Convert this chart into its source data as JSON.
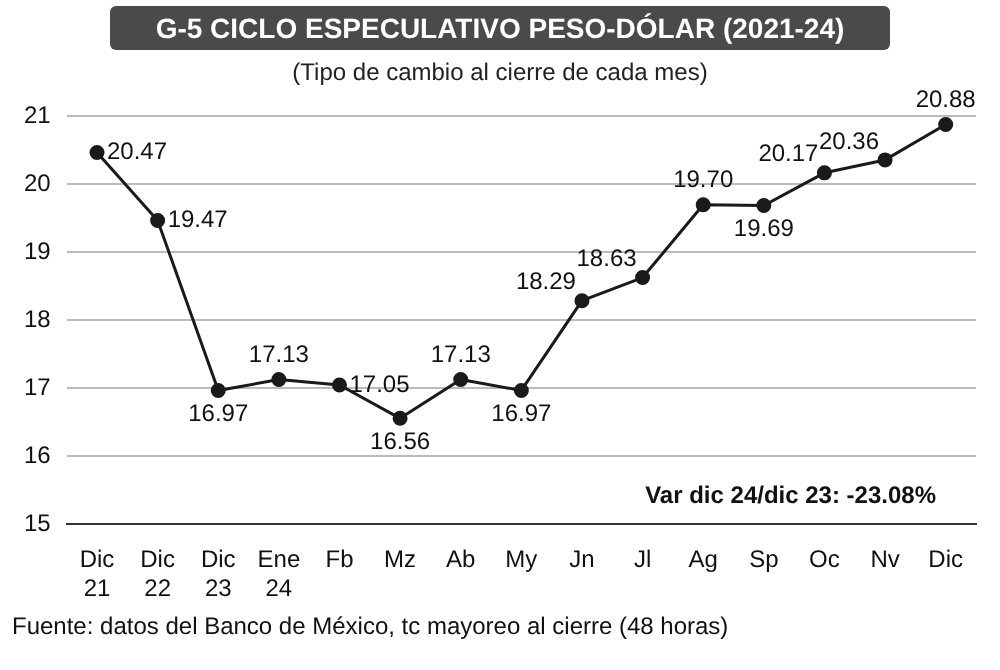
{
  "chart_data": {
    "type": "line",
    "title": "G-5 CICLO ESPECULATIVO PESO-DÓLAR (2021-24)",
    "subtitle": "(Tipo de cambio al cierre de cada mes)",
    "categories": [
      "Dic\n21",
      "Dic\n22",
      "Dic\n23",
      "Ene\n24",
      "Fb",
      "Mz",
      "Ab",
      "My",
      "Jn",
      "Jl",
      "Ag",
      "Sp",
      "Oc",
      "Nv",
      "Dic"
    ],
    "series": [
      {
        "color": "#1a1a1a",
        "values": [
          20.47,
          19.47,
          16.97,
          17.13,
          17.05,
          16.56,
          17.13,
          16.97,
          18.29,
          18.63,
          19.7,
          19.69,
          20.17,
          20.36,
          20.88
        ],
        "value_labels": [
          "20.47",
          "19.47",
          "16.97",
          "17.13",
          "17.05",
          "16.56",
          "17.13",
          "16.97",
          "18.29",
          "18.63",
          "19.70",
          "19.69",
          "20.17",
          "20.36",
          "20.88"
        ]
      }
    ],
    "ylim": [
      15,
      21
    ],
    "yticks": [
      15,
      16,
      17,
      18,
      19,
      20,
      21
    ],
    "grid": "y",
    "marker": "circle",
    "line_style": "solid",
    "legend": false,
    "annotations": [
      "Var dic 24/dic 23: -23.08%",
      "Fuente: datos del Banco de México, tc mayoreo al cierre (48 horas)"
    ]
  }
}
